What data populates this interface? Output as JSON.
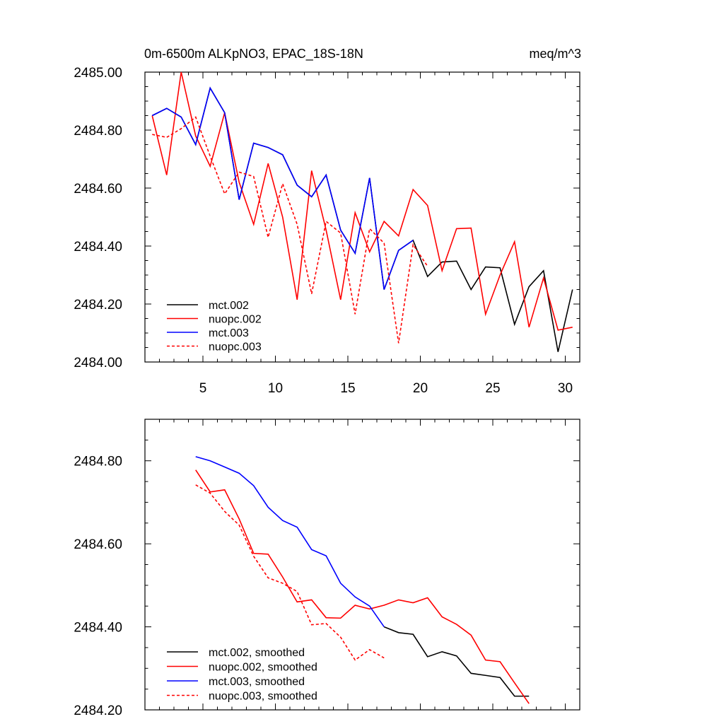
{
  "chart_data": [
    {
      "type": "line",
      "title": "0m-6500m ALKpNO3, EPAC_18S-18N",
      "units": "meq/m^3",
      "xlim": [
        1,
        31
      ],
      "ylim": [
        2484.0,
        2485.0
      ],
      "xticks": [
        5,
        10,
        15,
        20,
        25,
        30
      ],
      "xtick_labels": [
        "5",
        "10",
        "15",
        "20",
        "25",
        "30"
      ],
      "yticks": [
        2484.0,
        2484.2,
        2484.4,
        2484.6,
        2484.8,
        2485.0
      ],
      "ytick_labels": [
        "2484.00",
        "2484.20",
        "2484.40",
        "2484.60",
        "2484.80",
        "2485.00"
      ],
      "legend_position": "bottom-left",
      "series": [
        {
          "name": "mct.002",
          "color": "#000000",
          "dash": "solid",
          "x": [
            1.5,
            2.5,
            3.5,
            4.5,
            5.5,
            6.5,
            7.5,
            8.5,
            9.5,
            10.5,
            11.5,
            12.5,
            13.5,
            14.5,
            15.5,
            16.5,
            17.5,
            18.5,
            19.5,
            20.5,
            21.5,
            22.5,
            23.5,
            24.5,
            25.5,
            26.5,
            27.5,
            28.5,
            29.5,
            30.5
          ],
          "y": [
            2484.85,
            2484.875,
            2484.845,
            2484.75,
            2484.945,
            2484.86,
            2484.56,
            2484.755,
            2484.74,
            2484.715,
            2484.61,
            2484.57,
            2484.645,
            2484.455,
            2484.375,
            2484.635,
            2484.25,
            2484.385,
            2484.42,
            2484.295,
            2484.345,
            2484.348,
            2484.25,
            2484.328,
            2484.325,
            2484.13,
            2484.26,
            2484.315,
            2484.035,
            2484.25
          ]
        },
        {
          "name": "nuopc.002",
          "color": "#ff0000",
          "dash": "solid",
          "x": [
            1.5,
            2.5,
            3.5,
            4.5,
            5.5,
            6.5,
            7.5,
            8.5,
            9.5,
            10.5,
            11.5,
            12.5,
            13.5,
            14.5,
            15.5,
            16.5,
            17.5,
            18.5,
            19.5,
            20.5,
            21.5,
            22.5,
            23.5,
            24.5,
            25.5,
            26.5,
            27.5,
            28.5,
            29.5,
            30.5
          ],
          "y": [
            2484.85,
            2484.645,
            2485.0,
            2484.78,
            2484.675,
            2484.86,
            2484.62,
            2484.475,
            2484.685,
            2484.5,
            2484.215,
            2484.66,
            2484.455,
            2484.215,
            2484.515,
            2484.38,
            2484.485,
            2484.435,
            2484.595,
            2484.54,
            2484.315,
            2484.46,
            2484.462,
            2484.165,
            2484.3,
            2484.415,
            2484.12,
            2484.29,
            2484.11,
            2484.12
          ]
        },
        {
          "name": "mct.003",
          "color": "#0000ff",
          "dash": "solid",
          "x": [
            1.5,
            2.5,
            3.5,
            4.5,
            5.5,
            6.5,
            7.5,
            8.5,
            9.5,
            10.5,
            11.5,
            12.5,
            13.5,
            14.5,
            15.5,
            16.5,
            17.5,
            18.5,
            19.5
          ],
          "y": [
            2484.85,
            2484.875,
            2484.845,
            2484.75,
            2484.945,
            2484.86,
            2484.56,
            2484.755,
            2484.74,
            2484.715,
            2484.61,
            2484.57,
            2484.645,
            2484.455,
            2484.375,
            2484.635,
            2484.25,
            2484.385,
            2484.42
          ]
        },
        {
          "name": "nuopc.003",
          "color": "#ff0000",
          "dash": "dashed",
          "x": [
            1.5,
            2.5,
            3.5,
            4.5,
            5.5,
            6.5,
            7.5,
            8.5,
            9.5,
            10.5,
            11.5,
            12.5,
            13.5,
            14.5,
            15.5,
            16.5,
            17.5,
            18.5,
            19.5,
            20.5
          ],
          "y": [
            2484.785,
            2484.775,
            2484.805,
            2484.845,
            2484.71,
            2484.58,
            2484.655,
            2484.64,
            2484.43,
            2484.615,
            2484.475,
            2484.235,
            2484.485,
            2484.445,
            2484.165,
            2484.46,
            2484.41,
            2484.065,
            2484.405,
            2484.33
          ]
        }
      ]
    },
    {
      "type": "line",
      "xlim": [
        1,
        31
      ],
      "ylim": [
        2484.2,
        2484.9
      ],
      "xticks": [
        5,
        10,
        15,
        20,
        25,
        30
      ],
      "yticks": [
        2484.2,
        2484.4,
        2484.6,
        2484.8
      ],
      "ytick_labels": [
        "2484.20",
        "2484.40",
        "2484.60",
        "2484.80"
      ],
      "legend_position": "bottom-left",
      "series": [
        {
          "name": "mct.002, smoothed",
          "color": "#000000",
          "dash": "solid",
          "x": [
            17.5,
            18.5,
            19.5,
            20.5,
            21.5,
            22.5,
            23.5,
            24.5,
            25.5,
            26.5,
            27.5
          ],
          "y": [
            2484.4,
            2484.386,
            2484.382,
            2484.328,
            2484.34,
            2484.33,
            2484.288,
            2484.283,
            2484.278,
            2484.233,
            2484.233
          ]
        },
        {
          "name": "nuopc.002, smoothed",
          "color": "#ff0000",
          "dash": "solid",
          "x": [
            4.5,
            5.5,
            6.5,
            7.5,
            8.5,
            9.5,
            10.5,
            11.5,
            12.5,
            13.5,
            14.5,
            15.5,
            16.5,
            17.5,
            18.5,
            19.5,
            20.5,
            21.5,
            22.5,
            23.5,
            24.5,
            25.5,
            26.5,
            27.5
          ],
          "y": [
            2484.778,
            2484.725,
            2484.73,
            2484.66,
            2484.577,
            2484.575,
            2484.52,
            2484.46,
            2484.465,
            2484.422,
            2484.421,
            2484.452,
            2484.443,
            2484.452,
            2484.465,
            2484.458,
            2484.47,
            2484.424,
            2484.406,
            2484.38,
            2484.32,
            2484.316,
            2484.265,
            2484.215
          ]
        },
        {
          "name": "mct.003, smoothed",
          "color": "#0000ff",
          "dash": "solid",
          "x": [
            4.5,
            5.5,
            6.5,
            7.5,
            8.5,
            9.5,
            10.5,
            11.5,
            12.5,
            13.5,
            14.5,
            15.5,
            16.5,
            17.5
          ],
          "y": [
            2484.81,
            2484.8,
            2484.785,
            2484.77,
            2484.74,
            2484.688,
            2484.656,
            2484.64,
            2484.586,
            2484.571,
            2484.505,
            2484.472,
            2484.45,
            2484.4
          ]
        },
        {
          "name": "nuopc.003, smoothed",
          "color": "#ff0000",
          "dash": "dashed",
          "x": [
            4.5,
            5.5,
            6.5,
            7.5,
            8.5,
            9.5,
            10.5,
            11.5,
            12.5,
            13.5,
            14.5,
            15.5,
            16.5,
            17.5
          ],
          "y": [
            2484.742,
            2484.722,
            2484.678,
            2484.645,
            2484.57,
            2484.518,
            2484.505,
            2484.485,
            2484.405,
            2484.408,
            2484.375,
            2484.32,
            2484.345,
            2484.325
          ]
        }
      ]
    }
  ]
}
